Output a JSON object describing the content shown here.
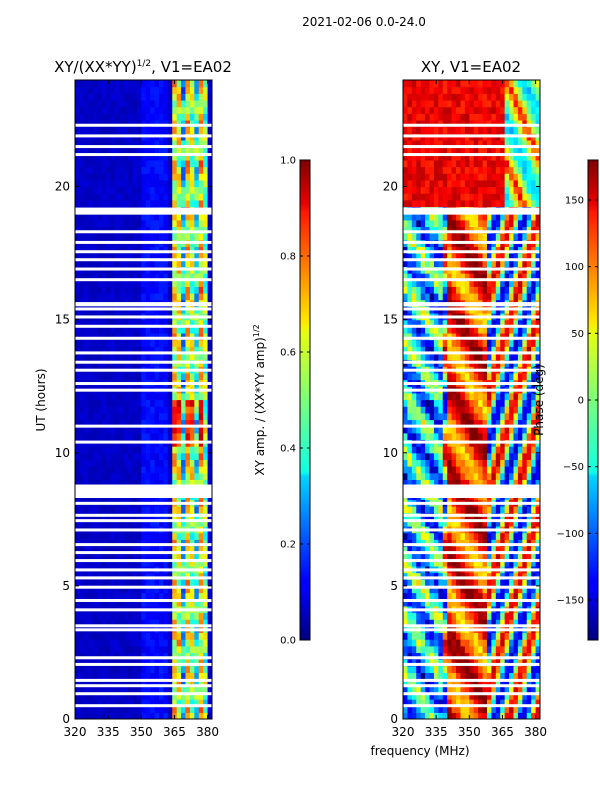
{
  "suptitle": "2021-02-06 0.0-24.0",
  "chart_data": [
    {
      "type": "heatmap",
      "title": "XY/(XX*YY)",
      "title_superscript": "1/2",
      "title_suffix": ", V1=EA02",
      "xlabel": "frequency (MHz)",
      "ylabel": "UT (hours)",
      "xlim": [
        320,
        382
      ],
      "ylim": [
        0,
        24
      ],
      "xticks": [
        "320",
        "335",
        "350",
        "365",
        "380"
      ],
      "xtick_values": [
        320,
        335,
        350,
        365,
        380
      ],
      "yticks": [
        "0",
        "5",
        "10",
        "15",
        "20"
      ],
      "ytick_values": [
        0,
        5,
        10,
        15,
        20
      ],
      "colorbar": {
        "label": "XY amp. / (XX*YY amp)",
        "label_superscript": "1/2",
        "range": [
          0.0,
          1.0
        ],
        "ticks": [
          "0.0",
          "0.2",
          "0.4",
          "0.6",
          "0.8",
          "1.0"
        ],
        "tick_values": [
          0.0,
          0.2,
          0.4,
          0.6,
          0.8,
          1.0
        ],
        "colormap": "jet"
      }
    },
    {
      "type": "heatmap",
      "title": "XY, V1=EA02",
      "xlabel": "frequency (MHz)",
      "ylabel": "",
      "xlim": [
        320,
        382
      ],
      "ylim": [
        0,
        24
      ],
      "xticks": [
        "320",
        "335",
        "350",
        "365",
        "380"
      ],
      "xtick_values": [
        320,
        335,
        350,
        365,
        380
      ],
      "yticks": [
        "0",
        "5",
        "10",
        "15",
        "20"
      ],
      "ytick_values": [
        0,
        5,
        10,
        15,
        20
      ],
      "colorbar": {
        "label": "Phase (deg)",
        "range": [
          -180,
          180
        ],
        "ticks": [
          "−150",
          "−100",
          "−50",
          "0",
          "50",
          "100",
          "150"
        ],
        "tick_values": [
          -150,
          -100,
          -50,
          0,
          50,
          100,
          150
        ],
        "colormap": "jet"
      }
    }
  ],
  "gap_hours": [
    0.5,
    0.95,
    1.25,
    1.45,
    2.05,
    2.3,
    3.35,
    3.5,
    4.1,
    4.45,
    4.95,
    5.3,
    5.6,
    5.95,
    6.25,
    6.55,
    7.1,
    7.45,
    7.65,
    8.1,
    8.55,
    8.75,
    10.4,
    11.0,
    12.35,
    12.6,
    13.1,
    13.4,
    13.75,
    14.3,
    14.75,
    15.1,
    15.4,
    15.6,
    16.5,
    16.9,
    17.25,
    17.55,
    17.9,
    18.3,
    19.0,
    19.15,
    21.2,
    21.5,
    21.9,
    22.3
  ]
}
